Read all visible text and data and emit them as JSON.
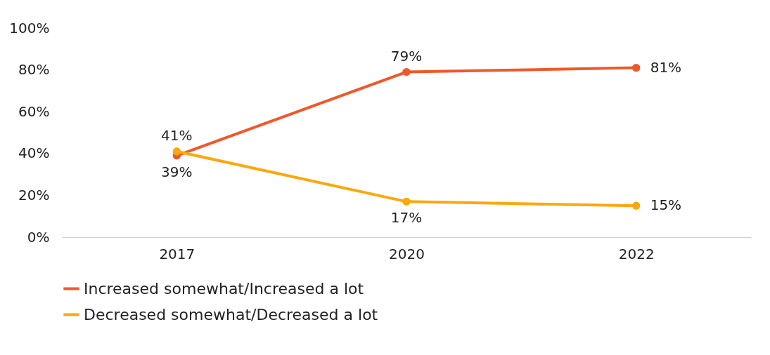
{
  "chart_data": {
    "type": "line",
    "categories": [
      "2017",
      "2020",
      "2022"
    ],
    "series": [
      {
        "name": "Increased somewhat/Increased a lot",
        "color": "#f0582a",
        "values": [
          39,
          79,
          81
        ],
        "value_labels": [
          "39%",
          "79%",
          "81%"
        ]
      },
      {
        "name": "Decreased somewhat/Decreased a lot",
        "color": "#fba80e",
        "values": [
          41,
          17,
          15
        ],
        "value_labels": [
          "41%",
          "17%",
          "15%"
        ]
      }
    ],
    "ylim": [
      0,
      100
    ],
    "yticks": [
      {
        "value": 0,
        "label": "0%"
      },
      {
        "value": 20,
        "label": "20%"
      },
      {
        "value": 40,
        "label": "40%"
      },
      {
        "value": 60,
        "label": "60%"
      },
      {
        "value": 80,
        "label": "80%"
      },
      {
        "value": 100,
        "label": "100%"
      }
    ],
    "grid": false,
    "legend": "bottom",
    "marker": "circle",
    "line_style": "solid"
  }
}
